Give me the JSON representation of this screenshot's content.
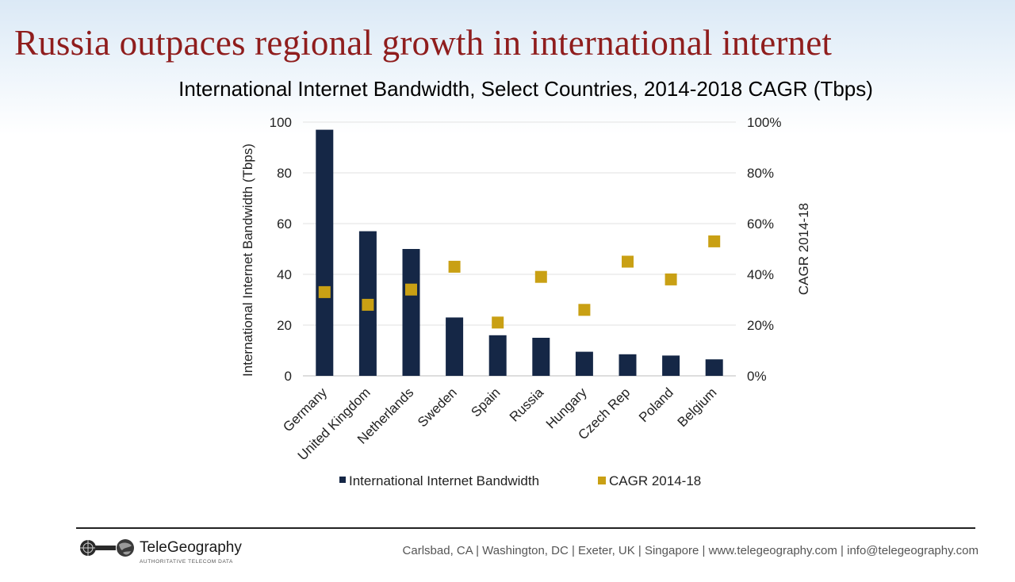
{
  "headline": "Russia outpaces regional growth in international internet",
  "chart_data": {
    "type": "bar",
    "title": "International Internet Bandwidth, Select Countries, 2014-2018 CAGR (Tbps)",
    "categories": [
      "Germany",
      "United Kingdom",
      "Netherlands",
      "Sweden",
      "Spain",
      "Russia",
      "Hungary",
      "Czech Rep",
      "Poland",
      "Belgium"
    ],
    "series": [
      {
        "name": "International Internet Bandwidth",
        "kind": "bar",
        "axis": "left",
        "color": "#152746",
        "values": [
          97,
          57,
          50,
          23,
          16,
          15,
          9.5,
          8.5,
          8,
          6.5
        ]
      },
      {
        "name": "CAGR 2014-18",
        "kind": "scatter",
        "axis": "right",
        "color": "#c9a014",
        "values": [
          33,
          28,
          34,
          43,
          21,
          39,
          26,
          45,
          38,
          53
        ]
      }
    ],
    "ylabel": "International Internet Bandwidth (Tbps)",
    "y2label": "CAGR 2014-18",
    "ylim": [
      0,
      100
    ],
    "y2lim": [
      0,
      100
    ],
    "yticks": [
      "0",
      "20",
      "40",
      "60",
      "80",
      "100"
    ],
    "y2ticks": [
      "0%",
      "20%",
      "40%",
      "60%",
      "80%",
      "100%"
    ],
    "grid": true,
    "legend": "bottom"
  },
  "footer": {
    "brand": "TeleGeography",
    "tagline": "AUTHORITATIVE TELECOM DATA",
    "contact": "Carlsbad, CA | Washington, DC | Exeter, UK | Singapore | www.telegeography.com | info@telegeography.com"
  }
}
